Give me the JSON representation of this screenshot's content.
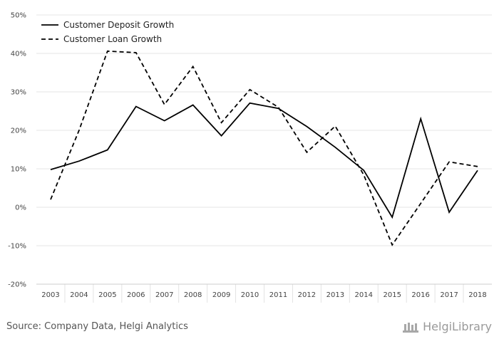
{
  "chart_data": {
    "type": "line",
    "title": "",
    "xlabel": "",
    "ylabel": "",
    "categories": [
      "2003",
      "2004",
      "2005",
      "2006",
      "2007",
      "2008",
      "2009",
      "2010",
      "2011",
      "2012",
      "2013",
      "2014",
      "2015",
      "2016",
      "2017",
      "2018"
    ],
    "ylim": [
      -20,
      50
    ],
    "yticks": [
      -20,
      -10,
      0,
      10,
      20,
      30,
      40,
      50
    ],
    "ytick_labels": [
      "-20%",
      "-10%",
      "0%",
      "10%",
      "20%",
      "30%",
      "40%",
      "50%"
    ],
    "grid": true,
    "legend_position": "top-left",
    "series": [
      {
        "name": "Customer Deposit Growth",
        "style": "solid",
        "color": "#000000",
        "values": [
          9.8,
          12.0,
          14.9,
          26.2,
          22.5,
          26.6,
          18.6,
          27.1,
          25.7,
          21.0,
          15.6,
          9.6,
          -2.6,
          23.0,
          -1.3,
          9.6
        ]
      },
      {
        "name": "Customer Loan Growth",
        "style": "dashed",
        "color": "#000000",
        "values": [
          2.0,
          20.0,
          40.6,
          40.2,
          26.7,
          36.6,
          22.0,
          30.6,
          26.0,
          14.3,
          21.1,
          8.4,
          -9.8,
          1.0,
          11.8,
          10.6
        ]
      }
    ]
  },
  "footer": {
    "source": "Source: Company Data, Helgi Analytics",
    "brand": "HelgiLibrary"
  }
}
